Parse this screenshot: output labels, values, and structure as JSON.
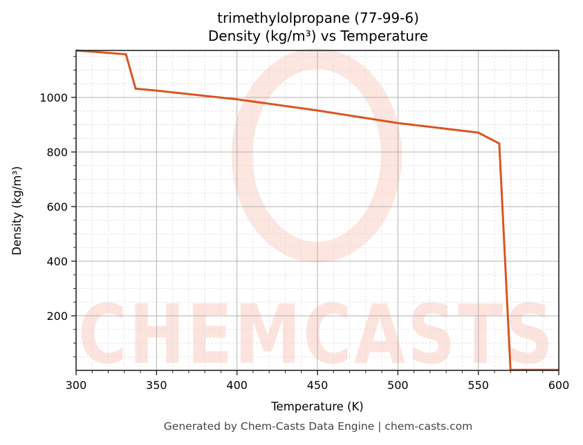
{
  "chart_data": {
    "type": "line",
    "title": "trimethylolpropane (77-99-6)",
    "subtitle": "Density (kg/m³) vs Temperature",
    "xlabel": "Temperature (K)",
    "ylabel": "Density (kg/m³)",
    "xlim": [
      300,
      600
    ],
    "ylim": [
      0,
      1172
    ],
    "xticks": [
      300,
      350,
      400,
      450,
      500,
      550,
      600
    ],
    "yticks": [
      200,
      400,
      600,
      800,
      1000
    ],
    "grid": true,
    "legend": null,
    "series": [
      {
        "name": "Density",
        "color": "#d9541e",
        "x": [
          300,
          331,
          337,
          350,
          400,
          450,
          500,
          550,
          563,
          570,
          600
        ],
        "y": [
          1172,
          1158,
          1032,
          1025,
          993,
          952,
          906,
          871,
          831,
          2,
          2
        ]
      }
    ]
  },
  "watermark": {
    "text": "CHEMCASTS",
    "color": "#fde3dd"
  },
  "footer": "Generated by Chem-Casts Data Engine | chem-casts.com"
}
